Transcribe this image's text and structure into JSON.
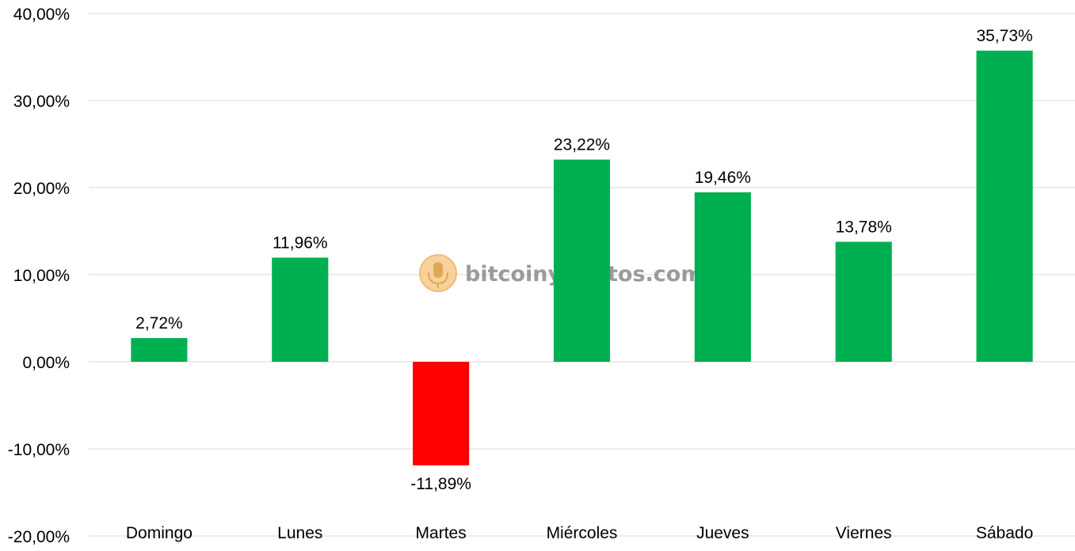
{
  "chart_data": {
    "type": "bar",
    "categories": [
      "Domingo",
      "Lunes",
      "Martes",
      "Miércoles",
      "Jueves",
      "Viernes",
      "Sábado"
    ],
    "values": [
      2.72,
      11.96,
      -11.89,
      23.22,
      19.46,
      13.78,
      35.73
    ],
    "data_labels": [
      "2,72%",
      "11,96%",
      "-11,89%",
      "23,22%",
      "19,46%",
      "13,78%",
      "35,73%"
    ],
    "ylim": [
      -20,
      40
    ],
    "yticks": [
      40,
      30,
      20,
      10,
      0,
      -10,
      -20
    ],
    "ytick_labels": [
      "40,00%",
      "30,00%",
      "20,00%",
      "10,00%",
      "0,00%",
      "-10,00%",
      "-20,00%"
    ],
    "grid": true,
    "colors": {
      "positive": "#00b050",
      "negative": "#ff0000",
      "grid": "#d9d9d9"
    }
  },
  "watermark": {
    "text": "bitcoinycriptos.com",
    "icon": "bitcoin-microphone-icon"
  }
}
